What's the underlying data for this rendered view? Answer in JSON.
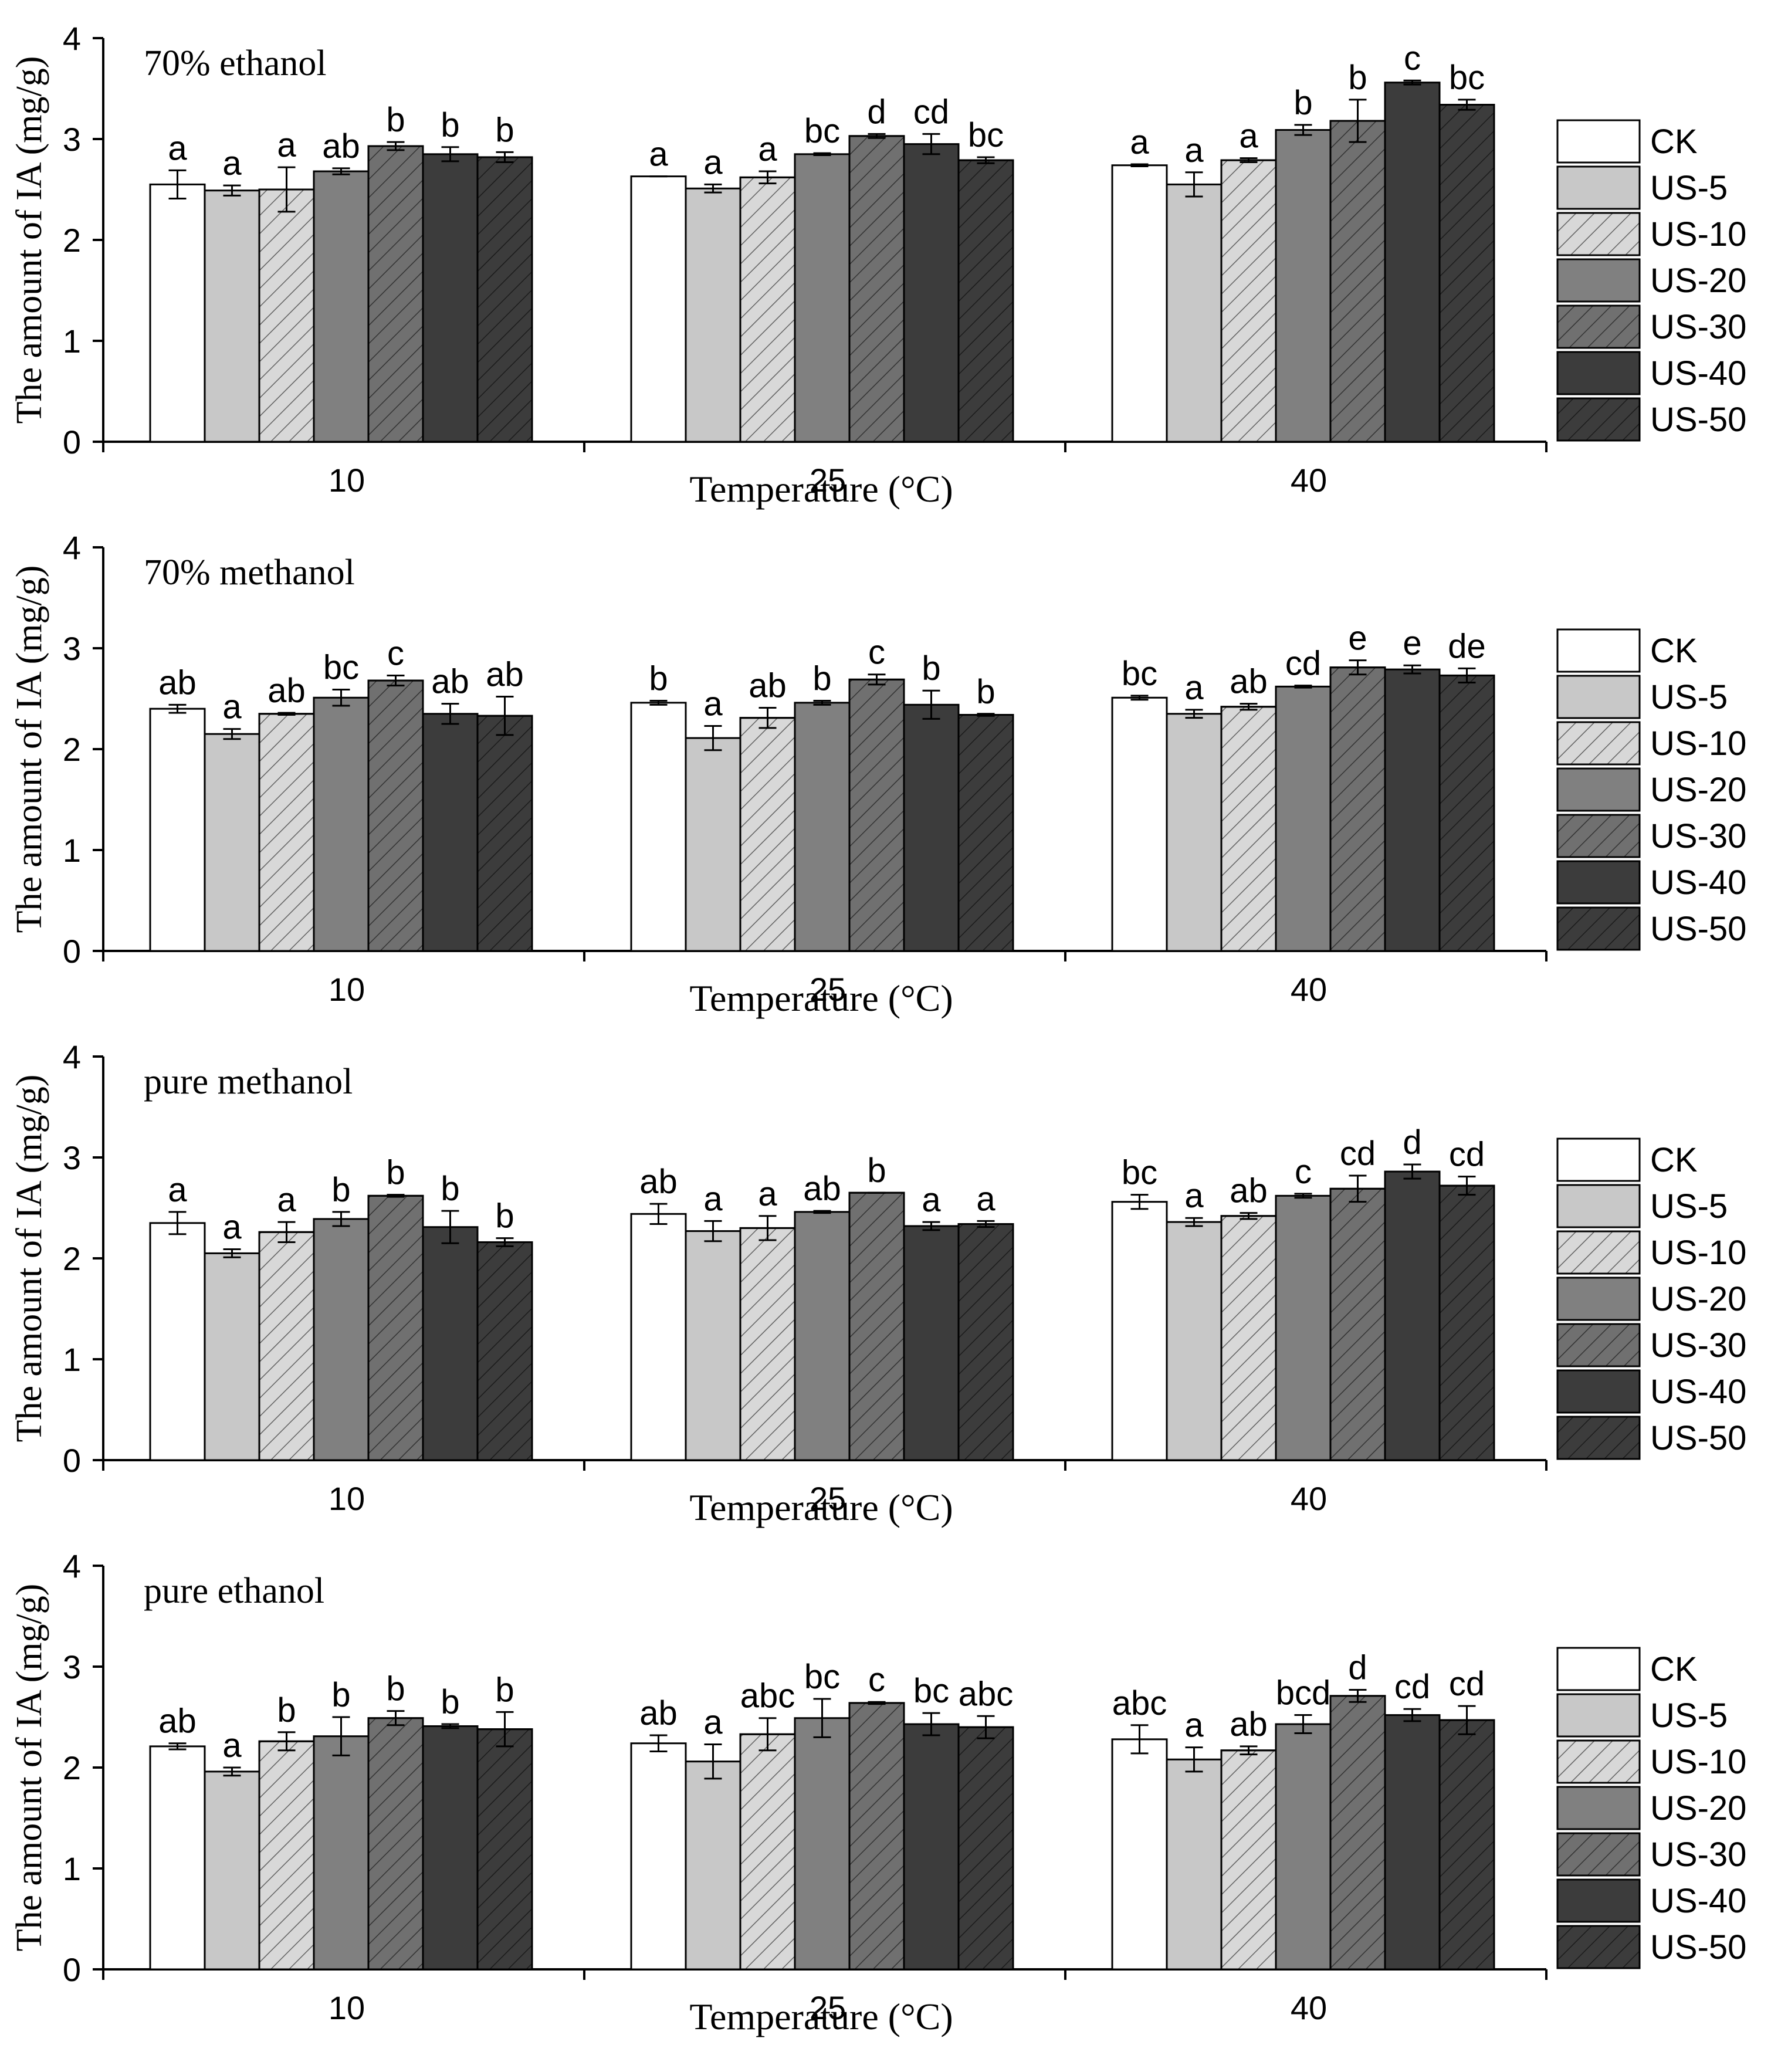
{
  "figure": {
    "shared_categories": [
      "10",
      "25",
      "40"
    ],
    "series_names": [
      "CK",
      "US-5",
      "US-10",
      "US-20",
      "US-30",
      "US-40",
      "US-50"
    ],
    "series_styles": [
      {
        "fill": "#ffffff",
        "hatch": false
      },
      {
        "fill": "#c8c8c8",
        "hatch": false
      },
      {
        "fill": "#d8d8d8",
        "hatch": true
      },
      {
        "fill": "#808080",
        "hatch": false
      },
      {
        "fill": "#707070",
        "hatch": true
      },
      {
        "fill": "#3c3c3c",
        "hatch": false
      },
      {
        "fill": "#3c3c3c",
        "hatch": true
      }
    ]
  },
  "chart_data": [
    {
      "type": "bar",
      "title": "70% ethanol",
      "xlabel": "Temperature (°C)",
      "ylabel": "The amount of IA (mg/g)",
      "ylim": [
        0,
        4
      ],
      "yticks": [
        "0",
        "1",
        "2",
        "3",
        "4"
      ],
      "categories": [
        "10",
        "25",
        "40"
      ],
      "legend": "right",
      "series": [
        {
          "name": "CK",
          "values": [
            2.55,
            2.63,
            2.74
          ],
          "errors": [
            0.14,
            0.0,
            0.01
          ],
          "letters": [
            "a",
            "a",
            "a"
          ]
        },
        {
          "name": "US-5",
          "values": [
            2.49,
            2.51,
            2.55
          ],
          "errors": [
            0.05,
            0.04,
            0.12
          ],
          "letters": [
            "a",
            "a",
            "a"
          ]
        },
        {
          "name": "US-10",
          "values": [
            2.5,
            2.62,
            2.79
          ],
          "errors": [
            0.22,
            0.06,
            0.02
          ],
          "letters": [
            "a",
            "a",
            "a"
          ]
        },
        {
          "name": "US-20",
          "values": [
            2.68,
            2.85,
            3.09
          ],
          "errors": [
            0.03,
            0.01,
            0.05
          ],
          "letters": [
            "ab",
            "bc",
            "b"
          ]
        },
        {
          "name": "US-30",
          "values": [
            2.93,
            3.03,
            3.18
          ],
          "errors": [
            0.04,
            0.02,
            0.21
          ],
          "letters": [
            "b",
            "d",
            "b"
          ]
        },
        {
          "name": "US-40",
          "values": [
            2.85,
            2.95,
            3.56
          ],
          "errors": [
            0.07,
            0.1,
            0.02
          ],
          "letters": [
            "b",
            "cd",
            "c"
          ]
        },
        {
          "name": "US-50",
          "values": [
            2.82,
            2.79,
            3.34
          ],
          "errors": [
            0.05,
            0.03,
            0.05
          ],
          "letters": [
            "b",
            "bc",
            "bc"
          ]
        }
      ]
    },
    {
      "type": "bar",
      "title": "70% methanol",
      "xlabel": "Temperature (°C)",
      "ylabel": "The amount of IA (mg/g)",
      "ylim": [
        0,
        4
      ],
      "yticks": [
        "0",
        "1",
        "2",
        "3",
        "4"
      ],
      "categories": [
        "10",
        "25",
        "40"
      ],
      "legend": "right",
      "series": [
        {
          "name": "CK",
          "values": [
            2.4,
            2.46,
            2.51
          ],
          "errors": [
            0.04,
            0.02,
            0.02
          ],
          "letters": [
            "ab",
            "b",
            "bc"
          ]
        },
        {
          "name": "US-5",
          "values": [
            2.15,
            2.11,
            2.35
          ],
          "errors": [
            0.05,
            0.12,
            0.04
          ],
          "letters": [
            "a",
            "a",
            "a"
          ]
        },
        {
          "name": "US-10",
          "values": [
            2.35,
            2.31,
            2.42
          ],
          "errors": [
            0.01,
            0.1,
            0.03
          ],
          "letters": [
            "ab",
            "ab",
            "ab"
          ]
        },
        {
          "name": "US-20",
          "values": [
            2.51,
            2.46,
            2.62
          ],
          "errors": [
            0.08,
            0.02,
            0.01
          ],
          "letters": [
            "bc",
            "b",
            "cd"
          ]
        },
        {
          "name": "US-30",
          "values": [
            2.68,
            2.69,
            2.81
          ],
          "errors": [
            0.05,
            0.05,
            0.07
          ],
          "letters": [
            "c",
            "c",
            "e"
          ]
        },
        {
          "name": "US-40",
          "values": [
            2.35,
            2.44,
            2.79
          ],
          "errors": [
            0.1,
            0.14,
            0.04
          ],
          "letters": [
            "ab",
            "b",
            "e"
          ]
        },
        {
          "name": "US-50",
          "values": [
            2.33,
            2.34,
            2.73
          ],
          "errors": [
            0.19,
            0.01,
            0.07
          ],
          "letters": [
            "ab",
            "b",
            "de"
          ]
        }
      ]
    },
    {
      "type": "bar",
      "title": "pure methanol",
      "xlabel": "Temperature (°C)",
      "ylabel": "The amount of IA (mg/g)",
      "ylim": [
        0,
        4
      ],
      "yticks": [
        "0",
        "1",
        "2",
        "3",
        "4"
      ],
      "categories": [
        "10",
        "25",
        "40"
      ],
      "legend": "right",
      "series": [
        {
          "name": "CK",
          "values": [
            2.35,
            2.44,
            2.56
          ],
          "errors": [
            0.11,
            0.1,
            0.07
          ],
          "letters": [
            "a",
            "ab",
            "bc"
          ]
        },
        {
          "name": "US-5",
          "values": [
            2.05,
            2.27,
            2.36
          ],
          "errors": [
            0.04,
            0.1,
            0.04
          ],
          "letters": [
            "a",
            "a",
            "a"
          ]
        },
        {
          "name": "US-10",
          "values": [
            2.26,
            2.3,
            2.42
          ],
          "errors": [
            0.1,
            0.12,
            0.03
          ],
          "letters": [
            "a",
            "a",
            "ab"
          ]
        },
        {
          "name": "US-20",
          "values": [
            2.39,
            2.46,
            2.62
          ],
          "errors": [
            0.07,
            0.01,
            0.02
          ],
          "letters": [
            "b",
            "ab",
            "c"
          ]
        },
        {
          "name": "US-30",
          "values": [
            2.62,
            2.65,
            2.69
          ],
          "errors": [
            0.01,
            0.0,
            0.13
          ],
          "letters": [
            "b",
            "b",
            "cd"
          ]
        },
        {
          "name": "US-40",
          "values": [
            2.31,
            2.32,
            2.86
          ],
          "errors": [
            0.16,
            0.04,
            0.07
          ],
          "letters": [
            "b",
            "a",
            "d"
          ]
        },
        {
          "name": "US-50",
          "values": [
            2.16,
            2.34,
            2.72
          ],
          "errors": [
            0.04,
            0.03,
            0.09
          ],
          "letters": [
            "b",
            "a",
            "cd"
          ]
        }
      ]
    },
    {
      "type": "bar",
      "title": "pure ethanol",
      "xlabel": "Temperature (°C)",
      "ylabel": "The amount of IA (mg/g)",
      "ylim": [
        0,
        4
      ],
      "yticks": [
        "0",
        "1",
        "2",
        "3",
        "4"
      ],
      "categories": [
        "10",
        "25",
        "40"
      ],
      "legend": "right",
      "series": [
        {
          "name": "CK",
          "values": [
            2.21,
            2.24,
            2.28
          ],
          "errors": [
            0.03,
            0.08,
            0.14
          ],
          "letters": [
            "ab",
            "ab",
            "abc"
          ]
        },
        {
          "name": "US-5",
          "values": [
            1.96,
            2.06,
            2.08
          ],
          "errors": [
            0.04,
            0.17,
            0.12
          ],
          "letters": [
            "a",
            "a",
            "a"
          ]
        },
        {
          "name": "US-10",
          "values": [
            2.26,
            2.33,
            2.17
          ],
          "errors": [
            0.09,
            0.16,
            0.04
          ],
          "letters": [
            "b",
            "abc",
            "ab"
          ]
        },
        {
          "name": "US-20",
          "values": [
            2.31,
            2.49,
            2.43
          ],
          "errors": [
            0.19,
            0.19,
            0.09
          ],
          "letters": [
            "b",
            "bc",
            "bcd"
          ]
        },
        {
          "name": "US-30",
          "values": [
            2.49,
            2.64,
            2.71
          ],
          "errors": [
            0.07,
            0.01,
            0.06
          ],
          "letters": [
            "b",
            "c",
            "d"
          ]
        },
        {
          "name": "US-40",
          "values": [
            2.41,
            2.43,
            2.52
          ],
          "errors": [
            0.02,
            0.11,
            0.06
          ],
          "letters": [
            "b",
            "bc",
            "cd"
          ]
        },
        {
          "name": "US-50",
          "values": [
            2.38,
            2.4,
            2.47
          ],
          "errors": [
            0.17,
            0.11,
            0.14
          ],
          "letters": [
            "b",
            "abc",
            "cd"
          ]
        }
      ]
    }
  ]
}
